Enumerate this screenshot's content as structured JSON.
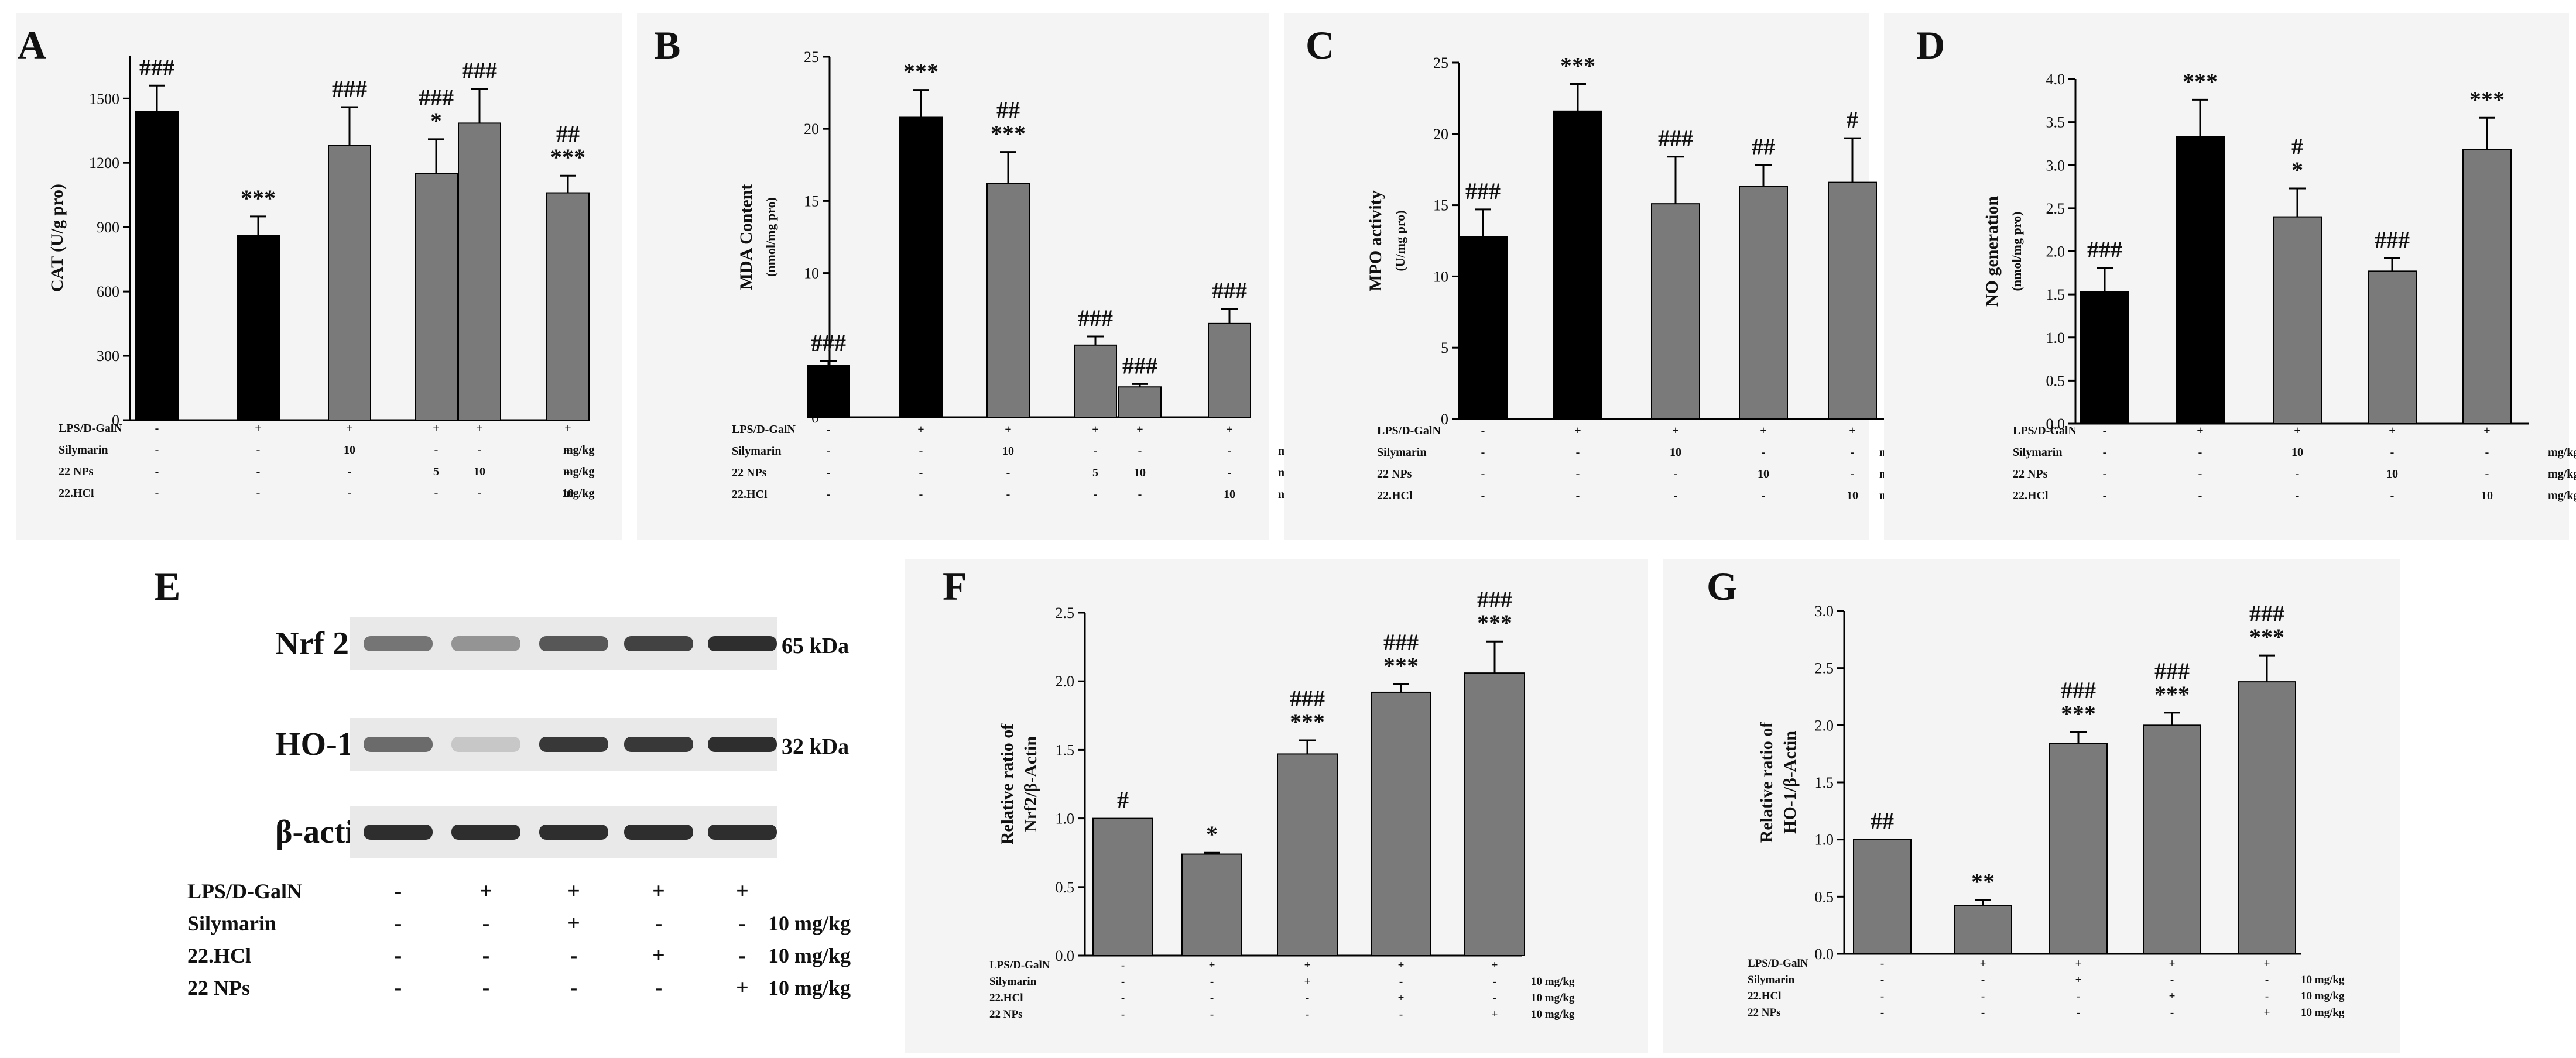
{
  "colors": {
    "black_bar": "#000000",
    "grey_bar": "#7a7a7a",
    "panel_bg": "#f4f4f4"
  },
  "chart_data": [
    {
      "panel": "A",
      "type": "bar",
      "ylabel": "CAT (U/g pro)",
      "ylim": [
        0,
        1700
      ],
      "yticks": [
        "0",
        "300",
        "600",
        "900",
        "1200",
        "1500"
      ],
      "ytick_values": [
        0,
        300,
        600,
        900,
        1200,
        1500
      ],
      "bars": [
        {
          "value": 1440,
          "err": 120,
          "color": "black",
          "marks": [
            "###"
          ]
        },
        {
          "value": 860,
          "err": 90,
          "color": "black",
          "marks": [
            "***"
          ]
        },
        {
          "value": 1280,
          "err": 180,
          "color": "grey",
          "marks": [
            "###"
          ]
        },
        {
          "value": 1150,
          "err": 160,
          "color": "grey",
          "marks": [
            "###",
            "*"
          ]
        },
        {
          "value": 1385,
          "err": 160,
          "color": "grey",
          "marks": [
            "###"
          ]
        },
        {
          "value": 1060,
          "err": 80,
          "color": "grey",
          "marks": [
            "##",
            "***"
          ]
        }
      ],
      "treatments": [
        {
          "label": "LPS/D-GalN",
          "values": [
            "-",
            "+",
            "+",
            "+",
            "+",
            "+"
          ],
          "unit": ""
        },
        {
          "label": "Silymarin",
          "values": [
            "-",
            "-",
            "10",
            "-",
            "-",
            "-"
          ],
          "unit": "mg/kg"
        },
        {
          "label": "22 NPs",
          "values": [
            "-",
            "-",
            "-",
            "5",
            "10",
            "-"
          ],
          "unit": "mg/kg"
        },
        {
          "label": "22.HCl",
          "values": [
            "-",
            "-",
            "-",
            "-",
            "-",
            "10"
          ],
          "unit": "mg/kg"
        }
      ]
    },
    {
      "panel": "B",
      "type": "bar",
      "ylabel": "MDA Content",
      "ylabel2": "(nmol/mg pro)",
      "ylim": [
        0,
        25
      ],
      "yticks": [
        "0",
        "5",
        "10",
        "15",
        "20",
        "25"
      ],
      "ytick_values": [
        0,
        5,
        10,
        15,
        20,
        25
      ],
      "bars": [
        {
          "value": 3.6,
          "err": 0.3,
          "color": "black",
          "marks": [
            "###"
          ]
        },
        {
          "value": 20.8,
          "err": 1.9,
          "color": "black",
          "marks": [
            "***"
          ]
        },
        {
          "value": 16.2,
          "err": 2.2,
          "color": "grey",
          "marks": [
            "##",
            "***"
          ]
        },
        {
          "value": 5.0,
          "err": 0.6,
          "color": "grey",
          "marks": [
            "###"
          ]
        },
        {
          "value": 2.1,
          "err": 0.2,
          "color": "grey",
          "marks": [
            "###"
          ]
        },
        {
          "value": 6.5,
          "err": 1.0,
          "color": "grey",
          "marks": [
            "###"
          ]
        }
      ],
      "treatments": [
        {
          "label": "LPS/D-GalN",
          "values": [
            "-",
            "+",
            "+",
            "+",
            "+",
            "+"
          ],
          "unit": ""
        },
        {
          "label": "Silymarin",
          "values": [
            "-",
            "-",
            "10",
            "-",
            "-",
            "-"
          ],
          "unit": "mg/kg"
        },
        {
          "label": "22 NPs",
          "values": [
            "-",
            "-",
            "-",
            "5",
            "10",
            "-"
          ],
          "unit": "mg/kg"
        },
        {
          "label": "22.HCl",
          "values": [
            "-",
            "-",
            "-",
            "-",
            "-",
            "10"
          ],
          "unit": "mg/kg"
        }
      ]
    },
    {
      "panel": "C",
      "type": "bar",
      "ylabel": "MPO activity",
      "ylabel2": "(U/mg pro)",
      "ylim": [
        0,
        25
      ],
      "yticks": [
        "0",
        "5",
        "10",
        "15",
        "20",
        "25"
      ],
      "ytick_values": [
        0,
        5,
        10,
        15,
        20,
        25
      ],
      "bars": [
        {
          "value": 12.8,
          "err": 1.9,
          "color": "black",
          "marks": [
            "###"
          ]
        },
        {
          "value": 21.6,
          "err": 1.9,
          "color": "black",
          "marks": [
            "***"
          ]
        },
        {
          "value": 15.1,
          "err": 3.3,
          "color": "grey",
          "marks": [
            "###"
          ]
        },
        {
          "value": 16.3,
          "err": 1.5,
          "color": "grey",
          "marks": [
            "##"
          ]
        },
        {
          "value": 16.6,
          "err": 3.1,
          "color": "grey",
          "marks": [
            "#"
          ]
        }
      ],
      "treatments": [
        {
          "label": "LPS/D-GalN",
          "values": [
            "-",
            "+",
            "+",
            "+",
            "+"
          ],
          "unit": ""
        },
        {
          "label": "Silymarin",
          "values": [
            "-",
            "-",
            "10",
            "-",
            "-"
          ],
          "unit": "mg/kg"
        },
        {
          "label": "22 NPs",
          "values": [
            "-",
            "-",
            "-",
            "10",
            "-"
          ],
          "unit": "mg/kg"
        },
        {
          "label": "22.HCl",
          "values": [
            "-",
            "-",
            "-",
            "-",
            "10"
          ],
          "unit": "mg/kg"
        }
      ]
    },
    {
      "panel": "D",
      "type": "bar",
      "ylabel": "NO generation",
      "ylabel2": "(nmol/mg pro)",
      "ylim": [
        0,
        4.0
      ],
      "yticks": [
        "0.0",
        "0.5",
        "1.0",
        "1.5",
        "2.0",
        "2.5",
        "3.0",
        "3.5",
        "4.0"
      ],
      "ytick_values": [
        0,
        0.5,
        1.0,
        1.5,
        2.0,
        2.5,
        3.0,
        3.5,
        4.0
      ],
      "bars": [
        {
          "value": 1.53,
          "err": 0.28,
          "color": "black",
          "marks": [
            "###"
          ]
        },
        {
          "value": 3.33,
          "err": 0.43,
          "color": "black",
          "marks": [
            "***"
          ]
        },
        {
          "value": 2.4,
          "err": 0.33,
          "color": "grey",
          "marks": [
            "#",
            "*"
          ]
        },
        {
          "value": 1.77,
          "err": 0.15,
          "color": "grey",
          "marks": [
            "###"
          ]
        },
        {
          "value": 3.18,
          "err": 0.37,
          "color": "grey",
          "marks": [
            "***"
          ]
        }
      ],
      "treatments": [
        {
          "label": "LPS/D-GalN",
          "values": [
            "-",
            "+",
            "+",
            "+",
            "+"
          ],
          "unit": ""
        },
        {
          "label": "Silymarin",
          "values": [
            "-",
            "-",
            "10",
            "-",
            "-"
          ],
          "unit": "mg/kg"
        },
        {
          "label": "22 NPs",
          "values": [
            "-",
            "-",
            "-",
            "10",
            "-"
          ],
          "unit": "mg/kg"
        },
        {
          "label": "22.HCl",
          "values": [
            "-",
            "-",
            "-",
            "-",
            "10"
          ],
          "unit": "mg/kg"
        }
      ]
    },
    {
      "panel": "F",
      "type": "bar",
      "ylabel": "Relative ratio of",
      "ylabel2": "Nrf2/β-Actin",
      "ylim": [
        0,
        2.5
      ],
      "yticks": [
        "0.0",
        "0.5",
        "1.0",
        "1.5",
        "2.0",
        "2.5"
      ],
      "ytick_values": [
        0,
        0.5,
        1.0,
        1.5,
        2.0,
        2.5
      ],
      "bars": [
        {
          "value": 1.0,
          "err": 0.0,
          "color": "grey",
          "marks": [
            "#"
          ]
        },
        {
          "value": 0.74,
          "err": 0.01,
          "color": "grey",
          "marks": [
            "*"
          ]
        },
        {
          "value": 1.47,
          "err": 0.1,
          "color": "grey",
          "marks": [
            "###",
            "***"
          ]
        },
        {
          "value": 1.92,
          "err": 0.06,
          "color": "grey",
          "marks": [
            "###",
            "***"
          ]
        },
        {
          "value": 2.06,
          "err": 0.23,
          "color": "grey",
          "marks": [
            "###",
            "***"
          ]
        }
      ],
      "treatments": [
        {
          "label": "LPS/D-GalN",
          "values": [
            "-",
            "+",
            "+",
            "+",
            "+"
          ],
          "unit": ""
        },
        {
          "label": "Silymarin",
          "values": [
            "-",
            "-",
            "+",
            "-",
            "-"
          ],
          "unit": "10 mg/kg"
        },
        {
          "label": "22.HCl",
          "values": [
            "-",
            "-",
            "-",
            "+",
            "-"
          ],
          "unit": "10 mg/kg"
        },
        {
          "label": "22 NPs",
          "values": [
            "-",
            "-",
            "-",
            "-",
            "+"
          ],
          "unit": "10 mg/kg"
        }
      ]
    },
    {
      "panel": "G",
      "type": "bar",
      "ylabel": "Relative ratio of",
      "ylabel2": "HO-1/β-Actin",
      "ylim": [
        0,
        3.0
      ],
      "yticks": [
        "0.0",
        "0.5",
        "1.0",
        "1.5",
        "2.0",
        "2.5",
        "3.0"
      ],
      "ytick_values": [
        0,
        0.5,
        1.0,
        1.5,
        2.0,
        2.5,
        3.0
      ],
      "bars": [
        {
          "value": 1.0,
          "err": 0.0,
          "color": "grey",
          "marks": [
            "##"
          ]
        },
        {
          "value": 0.42,
          "err": 0.05,
          "color": "grey",
          "marks": [
            "**"
          ]
        },
        {
          "value": 1.84,
          "err": 0.1,
          "color": "grey",
          "marks": [
            "###",
            "***"
          ]
        },
        {
          "value": 2.0,
          "err": 0.11,
          "color": "grey",
          "marks": [
            "###",
            "***"
          ]
        },
        {
          "value": 2.38,
          "err": 0.23,
          "color": "grey",
          "marks": [
            "###",
            "***"
          ]
        }
      ],
      "treatments": [
        {
          "label": "LPS/D-GalN",
          "values": [
            "-",
            "+",
            "+",
            "+",
            "+"
          ],
          "unit": ""
        },
        {
          "label": "Silymarin",
          "values": [
            "-",
            "-",
            "+",
            "-",
            "-"
          ],
          "unit": "10 mg/kg"
        },
        {
          "label": "22.HCl",
          "values": [
            "-",
            "-",
            "-",
            "+",
            "-"
          ],
          "unit": "10 mg/kg"
        },
        {
          "label": "22 NPs",
          "values": [
            "-",
            "-",
            "-",
            "-",
            "+"
          ],
          "unit": "10 mg/kg"
        }
      ]
    }
  ],
  "blot": {
    "panel": "E",
    "rows": [
      {
        "label": "Nrf 2",
        "kda": "65 kDa",
        "intensity": [
          0.55,
          0.4,
          0.7,
          0.8,
          0.9
        ]
      },
      {
        "label": "HO-1",
        "kda": "32 kDa",
        "intensity": [
          0.6,
          0.15,
          0.85,
          0.85,
          0.9
        ]
      },
      {
        "label": "β-actin",
        "kda": "",
        "intensity": [
          0.9,
          0.9,
          0.9,
          0.9,
          0.9
        ]
      }
    ],
    "treatments": [
      {
        "label": "LPS/D-GalN",
        "values": [
          "-",
          "+",
          "+",
          "+",
          "+"
        ],
        "unit": ""
      },
      {
        "label": "Silymarin",
        "values": [
          "-",
          "-",
          "+",
          "-",
          "-"
        ],
        "unit": "10 mg/kg"
      },
      {
        "label": "22.HCl",
        "values": [
          "-",
          "-",
          "-",
          "+",
          "-"
        ],
        "unit": "10 mg/kg"
      },
      {
        "label": "22 NPs",
        "values": [
          "-",
          "-",
          "-",
          "-",
          "+"
        ],
        "unit": "10 mg/kg"
      }
    ]
  }
}
